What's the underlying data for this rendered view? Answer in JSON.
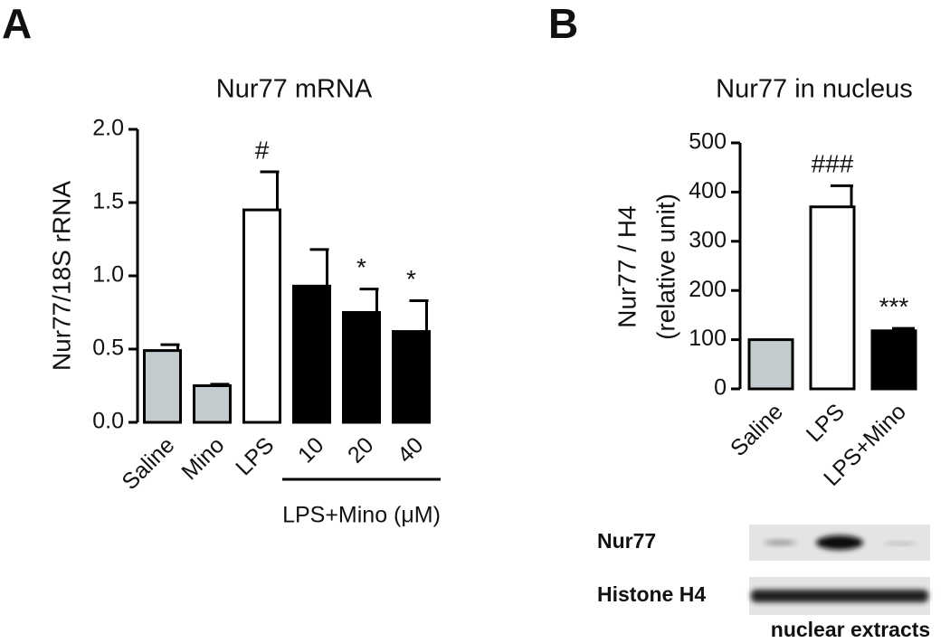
{
  "panels": [
    "A",
    "B"
  ],
  "chart_data": [
    {
      "type": "bar",
      "title": "Nur77 mRNA",
      "y_label": "Nur77/18S rRNA",
      "categories": [
        "Saline",
        "Mino",
        "LPS",
        "10",
        "20",
        "40"
      ],
      "values": [
        0.49,
        0.25,
        1.45,
        0.93,
        0.75,
        0.62
      ],
      "errors": [
        0.04,
        0.01,
        0.26,
        0.25,
        0.16,
        0.21
      ],
      "colors": [
        "#c3cbce",
        "#c3cbce",
        "#ffffff",
        "#000000",
        "#000000",
        "#000000"
      ],
      "bar_labels": [
        null,
        null,
        "#",
        null,
        "*",
        "*"
      ],
      "group_label": "LPS+Mino (μM)",
      "ylim": [
        0,
        2
      ],
      "yticks": [
        {
          "value": 0,
          "label": "0.0"
        },
        {
          "value": 0.5,
          "label": "0.5"
        },
        {
          "value": 1,
          "label": "1.0"
        },
        {
          "value": 1.5,
          "label": "1.5"
        },
        {
          "value": 2,
          "label": "2.0"
        }
      ]
    },
    {
      "type": "bar",
      "title": "Nur77 in nucleus",
      "y_label": [
        "Nur77 / H4",
        "(relative unit)"
      ],
      "categories": [
        "Saline",
        "LPS",
        "LPS+Mino"
      ],
      "values": [
        100,
        370,
        118
      ],
      "errors": [
        0,
        43,
        5
      ],
      "colors": [
        "#c3cbce",
        "#ffffff",
        "#000000"
      ],
      "bar_labels": [
        null,
        "###",
        "***"
      ],
      "ylim": [
        0,
        500
      ],
      "yticks": [
        0,
        100,
        200,
        300,
        400,
        500
      ]
    }
  ],
  "blot": {
    "rows": [
      "Nur77",
      "Histone H4"
    ],
    "caption": "nuclear extracts"
  }
}
